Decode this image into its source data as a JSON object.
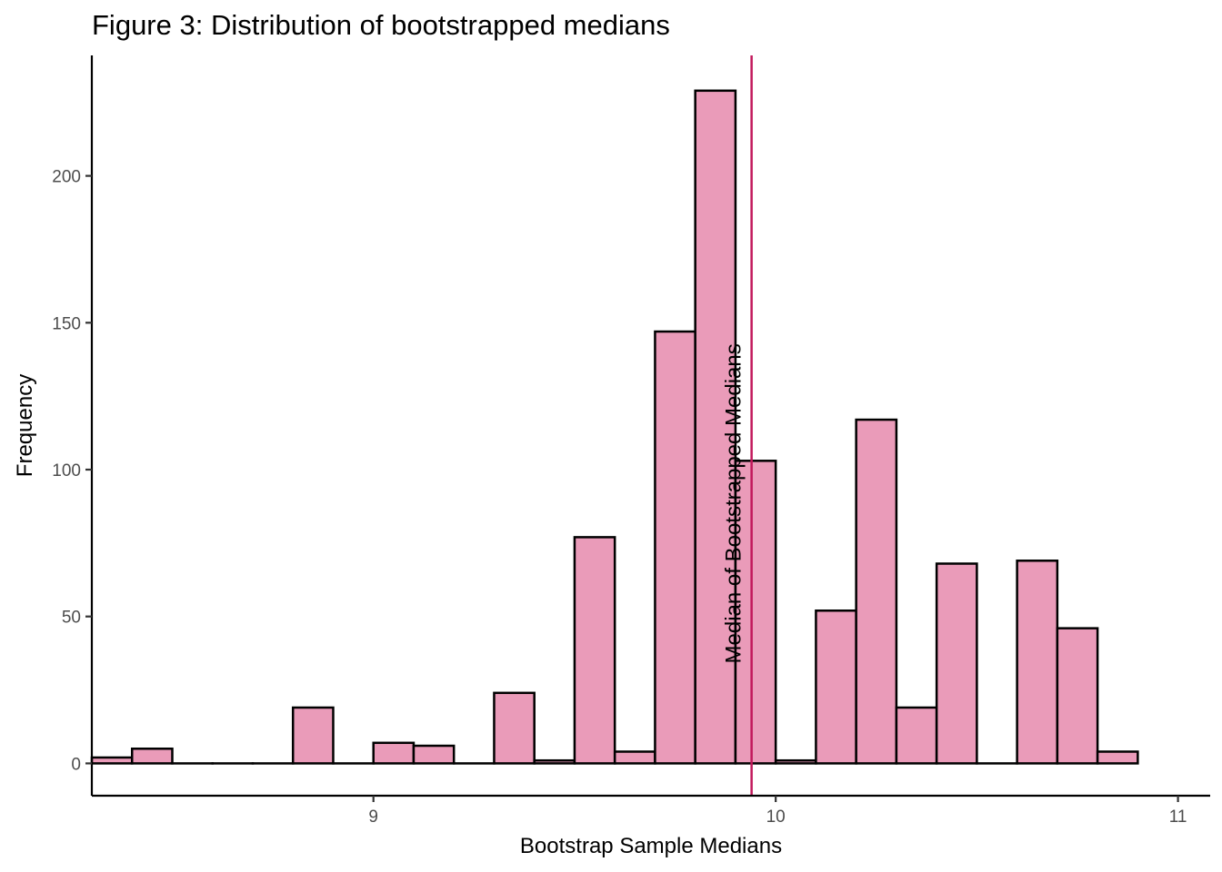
{
  "chart_data": {
    "type": "bar",
    "subtype": "histogram",
    "title": "Figure 3: Distribution of bootstrapped medians",
    "xlabel": "Bootstrap Sample Medians",
    "ylabel": "Frequency",
    "xlim": [
      8.3,
      11.08
    ],
    "ylim": [
      -11,
      241
    ],
    "x_ticks": [
      9,
      10,
      11
    ],
    "x_tick_labels": [
      "9",
      "10",
      "11"
    ],
    "y_ticks": [
      0,
      50,
      100,
      150,
      200
    ],
    "y_tick_labels": [
      "0",
      "50",
      "100",
      "150",
      "200"
    ],
    "bin_width": 0.1,
    "bins": [
      {
        "x": 8.35,
        "count": 2
      },
      {
        "x": 8.45,
        "count": 5
      },
      {
        "x": 8.55,
        "count": 0
      },
      {
        "x": 8.65,
        "count": 0
      },
      {
        "x": 8.75,
        "count": 0
      },
      {
        "x": 8.85,
        "count": 19
      },
      {
        "x": 8.95,
        "count": 0
      },
      {
        "x": 9.05,
        "count": 7
      },
      {
        "x": 9.15,
        "count": 6
      },
      {
        "x": 9.25,
        "count": 0
      },
      {
        "x": 9.35,
        "count": 24
      },
      {
        "x": 9.45,
        "count": 1
      },
      {
        "x": 9.55,
        "count": 77
      },
      {
        "x": 9.65,
        "count": 4
      },
      {
        "x": 9.75,
        "count": 147
      },
      {
        "x": 9.85,
        "count": 229
      },
      {
        "x": 9.95,
        "count": 103
      },
      {
        "x": 10.05,
        "count": 1
      },
      {
        "x": 10.15,
        "count": 52
      },
      {
        "x": 10.25,
        "count": 117
      },
      {
        "x": 10.35,
        "count": 19
      },
      {
        "x": 10.45,
        "count": 68
      },
      {
        "x": 10.55,
        "count": 0
      },
      {
        "x": 10.65,
        "count": 69
      },
      {
        "x": 10.75,
        "count": 46
      },
      {
        "x": 10.85,
        "count": 4
      }
    ],
    "median_line": {
      "x": 9.94,
      "label": "Median of Bootstrapped Medians",
      "label_y": 34
    },
    "grid": false,
    "colors": {
      "bar_fill": "#ea9bb9",
      "bar_outline": "#000000",
      "median_line": "#c2185b"
    }
  }
}
